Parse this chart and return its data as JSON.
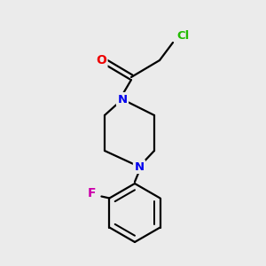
{
  "bg_color": "#ebebeb",
  "bond_color": "#000000",
  "N_color": "#0000ee",
  "O_color": "#ee0000",
  "Cl_color": "#22bb00",
  "F_color": "#cc00aa",
  "label_N": "N",
  "label_O": "O",
  "label_Cl": "Cl",
  "label_F": "F",
  "figsize": [
    3.0,
    3.0
  ],
  "dpi": 100
}
